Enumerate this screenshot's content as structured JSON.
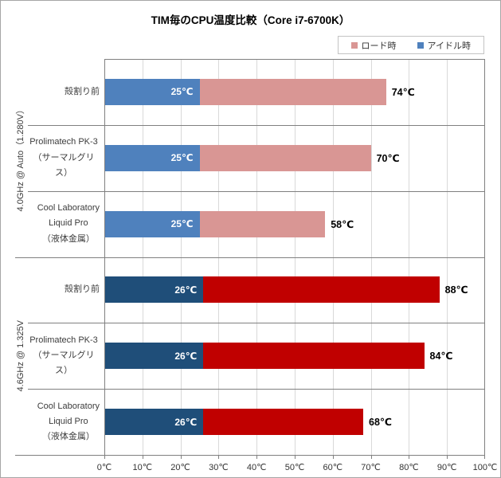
{
  "chart_data": {
    "type": "bar",
    "orientation": "horizontal",
    "title": "TIM毎のCPU温度比較（Core i7-6700K）",
    "xlabel": "",
    "ylabel": "",
    "grid": true,
    "x_axis": {
      "min": 0,
      "max": 100,
      "step": 10,
      "unit": "℃",
      "tick_labels": [
        "0℃",
        "10℃",
        "20℃",
        "30℃",
        "40℃",
        "50℃",
        "60℃",
        "70℃",
        "80℃",
        "90℃",
        "100℃"
      ]
    },
    "legend": {
      "position": "top-right",
      "items": [
        {
          "label": "ロード時",
          "color": "#D99694"
        },
        {
          "label": "アイドル時",
          "color": "#4F81BD"
        }
      ]
    },
    "groups": [
      {
        "label": "4.0GHz @ Auto（1.280V）",
        "idle_color": "#4F81BD",
        "load_color": "#D99694",
        "rows": [
          {
            "category_lines": [
              "殻割り前"
            ],
            "idle": 25,
            "load": 74,
            "idle_label": "25℃",
            "load_label": "74℃"
          },
          {
            "category_lines": [
              "Prolimatech PK-3",
              "（サーマルグリス）"
            ],
            "idle": 25,
            "load": 70,
            "idle_label": "25℃",
            "load_label": "70℃"
          },
          {
            "category_lines": [
              "Cool Laboratory",
              "Liquid Pro",
              "（液体金属）"
            ],
            "idle": 25,
            "load": 58,
            "idle_label": "25℃",
            "load_label": "58℃"
          }
        ]
      },
      {
        "label": "4.6GHz @ 1.325V",
        "idle_color": "#1F4E79",
        "load_color": "#C00000",
        "rows": [
          {
            "category_lines": [
              "殻割り前"
            ],
            "idle": 26,
            "load": 88,
            "idle_label": "26℃",
            "load_label": "88℃"
          },
          {
            "category_lines": [
              "Prolimatech PK-3",
              "（サーマルグリス）"
            ],
            "idle": 26,
            "load": 84,
            "idle_label": "26℃",
            "load_label": "84℃"
          },
          {
            "category_lines": [
              "Cool Laboratory",
              "Liquid Pro",
              "（液体金属）"
            ],
            "idle": 26,
            "load": 68,
            "idle_label": "26℃",
            "load_label": "68℃"
          }
        ]
      }
    ],
    "colors": {
      "gridline": "#D9D9D9",
      "axis_line": "#808080",
      "outer_border": "#A6A6A6",
      "idle_label_text": "#FFFFFF",
      "load_label_text": "#000000"
    }
  }
}
